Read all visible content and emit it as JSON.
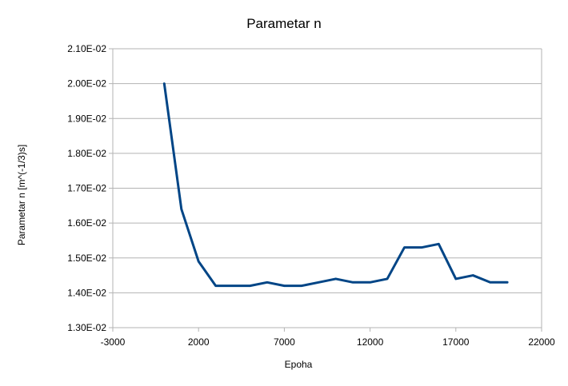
{
  "chart_data": {
    "type": "line",
    "title": "Parametar n",
    "xlabel": "Epoha",
    "ylabel": "Parametar n [m^(-1/3)s]",
    "xlim": [
      -3000,
      22000
    ],
    "ylim": [
      0.013,
      0.021
    ],
    "x_ticks": [
      -3000,
      2000,
      7000,
      12000,
      17000,
      22000
    ],
    "x_tick_labels": [
      "-3000",
      "2000",
      "7000",
      "12000",
      "17000",
      "22000"
    ],
    "y_ticks": [
      0.013,
      0.014,
      0.015,
      0.016,
      0.017,
      0.018,
      0.019,
      0.02,
      0.021
    ],
    "y_tick_labels": [
      "1.30E-02",
      "1.40E-02",
      "1.50E-02",
      "1.60E-02",
      "1.70E-02",
      "1.80E-02",
      "1.90E-02",
      "2.00E-02",
      "2.10E-02"
    ],
    "grid": "horizontal",
    "legend": "none",
    "color": "#004586",
    "series": [
      {
        "x": [
          0,
          1000,
          2000,
          3000,
          4000,
          5000,
          6000,
          7000,
          8000,
          9000,
          10000,
          11000,
          12000,
          13000,
          14000,
          15000,
          16000,
          17000,
          18000,
          19000,
          20000
        ],
        "values": [
          0.02,
          0.0164,
          0.0149,
          0.0142,
          0.0142,
          0.0142,
          0.0143,
          0.0142,
          0.0142,
          0.0143,
          0.0144,
          0.0143,
          0.0143,
          0.0144,
          0.0153,
          0.0153,
          0.0154,
          0.0144,
          0.0145,
          0.0143,
          0.0143
        ]
      }
    ]
  }
}
